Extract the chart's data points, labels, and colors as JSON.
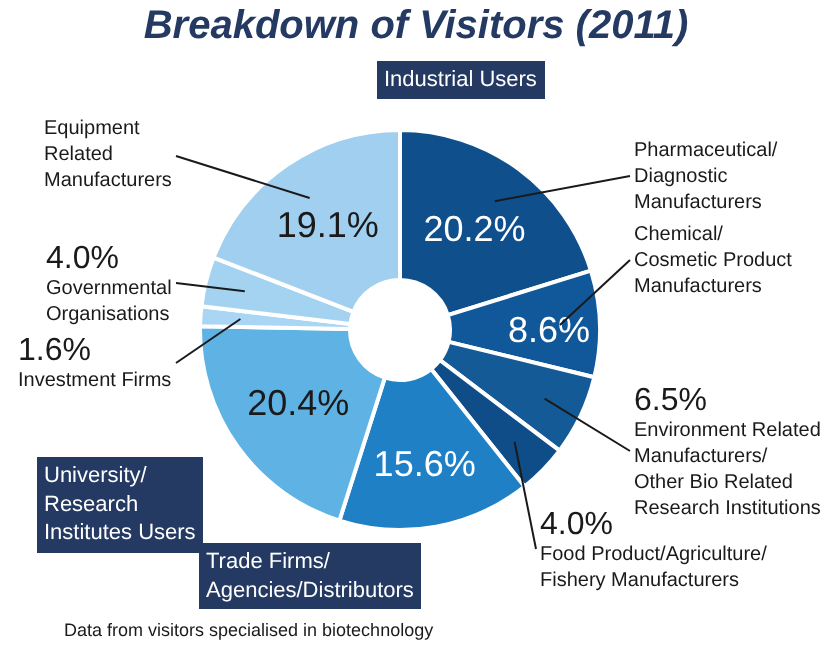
{
  "chart_data": {
    "type": "donut",
    "title": "Breakdown of Visitors (2011)",
    "categories": [
      "Pharmaceutical/\nDiagnostic\nManufacturers",
      "Chemical/\nCosmetic Product\nManufacturers",
      "Environment Related\nManufacturers/\nOther Bio Related\nResearch Institutions",
      "Food Product/Agriculture/\nFishery Manufacturers",
      "Trade Firms/\nAgencies/Distributors",
      "University/\nResearch\nInstitutes Users",
      "Investment Firms",
      "Governmental\nOrganisations",
      "Equipment\nRelated\nManufacturers"
    ],
    "values": [
      20.2,
      8.6,
      6.5,
      4.0,
      15.6,
      20.4,
      1.6,
      4.0,
      19.1
    ],
    "colors": [
      "#0f4f8c",
      "#11589a",
      "#135a96",
      "#0e4d88",
      "#1f80c6",
      "#5fb2e4",
      "#a8d6f4",
      "#a4d3f2",
      "#a0cff0"
    ],
    "annotations": [
      "Industrial Users",
      "Data from visitors specialised in biotechnology"
    ],
    "value_labels": [
      "20.2%",
      "8.6%",
      "6.5%",
      "4.0%",
      "15.6%",
      "20.4%",
      "1.6%",
      "4.0%",
      "19.1%"
    ]
  }
}
